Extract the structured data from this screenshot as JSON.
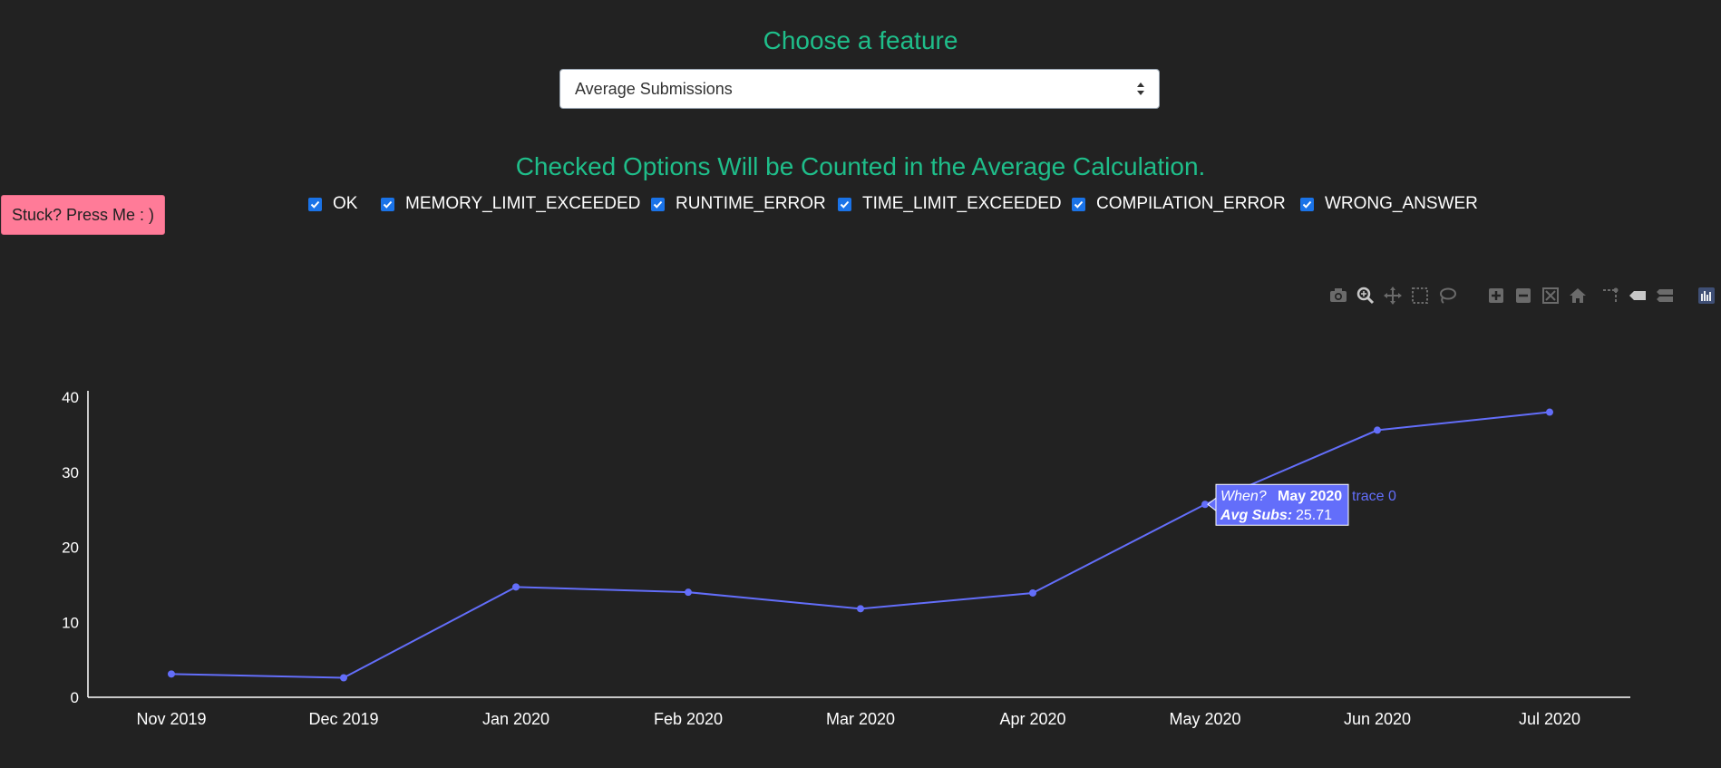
{
  "header": {
    "title": "Choose a feature"
  },
  "feature_select": {
    "value": "Average Submissions"
  },
  "options": {
    "subtitle": "Checked Options Will be Counted in the Average Calculation.",
    "items": [
      {
        "label": "OK",
        "checked": true
      },
      {
        "label": "MEMORY_LIMIT_EXCEEDED",
        "checked": true
      },
      {
        "label": "RUNTIME_ERROR",
        "checked": true
      },
      {
        "label": "TIME_LIMIT_EXCEEDED",
        "checked": true
      },
      {
        "label": "COMPILATION_ERROR",
        "checked": true
      },
      {
        "label": "WRONG_ANSWER",
        "checked": true
      }
    ]
  },
  "help_button": {
    "label": "Stuck? Press Me : )"
  },
  "modebar": {
    "icons": [
      "camera-icon",
      "zoom-icon",
      "pan-icon",
      "box-select-icon",
      "lasso-select-icon",
      "zoom-in-icon",
      "zoom-out-icon",
      "autoscale-icon",
      "reset-axes-icon",
      "spike-lines-icon",
      "hover-closest-icon",
      "hover-compare-icon",
      "plotly-logo-icon"
    ]
  },
  "chart_data": {
    "type": "line",
    "categories": [
      "Nov 2019",
      "Dec 2019",
      "Jan 2020",
      "Feb 2020",
      "Mar 2020",
      "Apr 2020",
      "May 2020",
      "Jun 2020",
      "Jul 2020"
    ],
    "series": [
      {
        "name": "trace 0",
        "color": "#636efa",
        "values": [
          3.1,
          2.6,
          14.7,
          14.0,
          11.8,
          13.9,
          25.71,
          35.6,
          38.0
        ]
      }
    ],
    "ylim": [
      0,
      40
    ],
    "yticks": [
      0,
      10,
      20,
      30,
      40
    ],
    "grid": false,
    "tooltip": {
      "category": "May 2020",
      "x_label": "When?",
      "x_value": "May 2020",
      "y_label": "Avg Subs:",
      "y_value": "25.71",
      "trace_label": "trace 0"
    }
  }
}
